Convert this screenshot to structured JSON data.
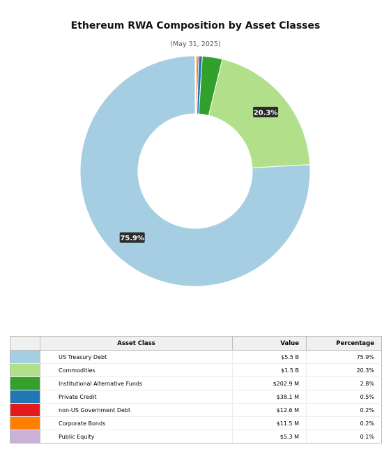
{
  "chart_data": {
    "type": "pie",
    "title": "Ethereum RWA Composition by Asset Classes",
    "subtitle": "(May 31, 2025)",
    "donut": true,
    "table_headers": [
      "Asset Class",
      "Value",
      "Percentage"
    ],
    "slices": [
      {
        "label": "US Treasury Debt",
        "value": "$5.5 B",
        "percent": 75.9,
        "percent_text": "75.9%",
        "color": "#a6cee3",
        "show_label": true
      },
      {
        "label": "Commodities",
        "value": "$1.5 B",
        "percent": 20.3,
        "percent_text": "20.3%",
        "color": "#b2df8a",
        "show_label": true
      },
      {
        "label": "Institutional Alternative Funds",
        "value": "$202.9 M",
        "percent": 2.8,
        "percent_text": "2.8%",
        "color": "#33a02c",
        "show_label": false
      },
      {
        "label": "Private Credit",
        "value": "$38.1 M",
        "percent": 0.5,
        "percent_text": "0.5%",
        "color": "#1f78b4",
        "show_label": false
      },
      {
        "label": "non-US Government Debt",
        "value": "$12.6 M",
        "percent": 0.2,
        "percent_text": "0.2%",
        "color": "#e31a1c",
        "show_label": false
      },
      {
        "label": "Corporate Bonds",
        "value": "$11.5 M",
        "percent": 0.2,
        "percent_text": "0.2%",
        "color": "#ff7f00",
        "show_label": false
      },
      {
        "label": "Public Equity",
        "value": "$5.3 M",
        "percent": 0.1,
        "percent_text": "0.1%",
        "color": "#cab2d6",
        "show_label": false
      }
    ]
  }
}
